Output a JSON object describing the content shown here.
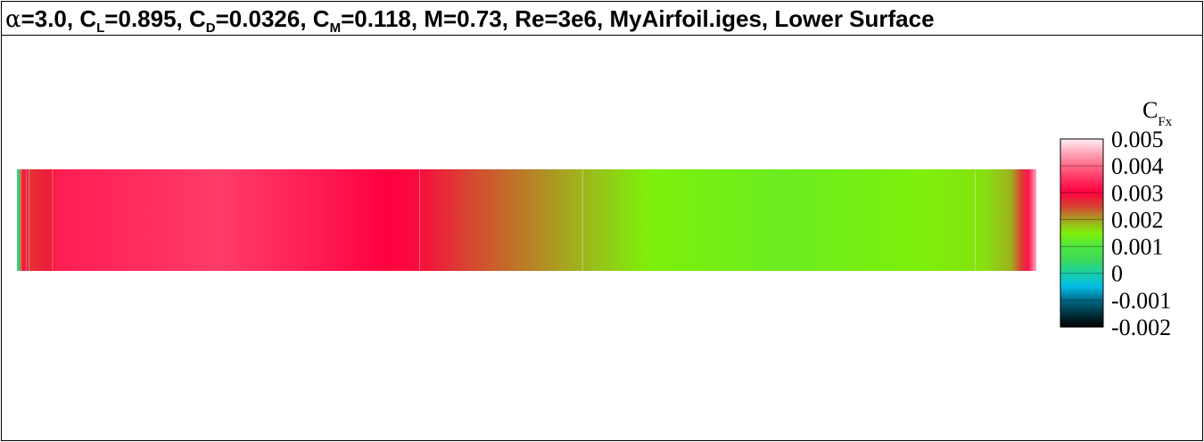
{
  "title": {
    "alpha_symbol": "α",
    "alpha_value": "=3.0, ",
    "cl_main": "C",
    "cl_sub": "L",
    "cl_value": "=0.895, ",
    "cd_main": "C",
    "cd_sub": "D",
    "cd_value": "=0.0326, ",
    "cm_main": "C",
    "cm_sub": "M",
    "cm_value": "=0.118, M=0.73, Re=3e6, MyAirfoil.iges, Lower Surface"
  },
  "chart_data": {
    "type": "heatmap",
    "variable_main": "C",
    "variable_sub": "Fx",
    "colorbar": {
      "min": -0.002,
      "max": 0.005,
      "ticks": [
        {
          "value": 0.005,
          "label": "0.005"
        },
        {
          "value": 0.004,
          "label": "0.004"
        },
        {
          "value": 0.003,
          "label": "0.003"
        },
        {
          "value": 0.002,
          "label": "0.002"
        },
        {
          "value": 0.001,
          "label": "0.001"
        },
        {
          "value": 0,
          "label": "0"
        },
        {
          "value": -0.001,
          "label": "-0.001"
        },
        {
          "value": -0.002,
          "label": "-0.002"
        }
      ],
      "color_stops": [
        {
          "value": -0.002,
          "color": "#000000"
        },
        {
          "value": -0.0015,
          "color": "#00323f"
        },
        {
          "value": -0.001,
          "color": "#006a86"
        },
        {
          "value": -0.0005,
          "color": "#00bde6"
        },
        {
          "value": 0.0,
          "color": "#1ad0a9"
        },
        {
          "value": 0.0005,
          "color": "#3cd858"
        },
        {
          "value": 0.001,
          "color": "#4ee641"
        },
        {
          "value": 0.0015,
          "color": "#7ef00a"
        },
        {
          "value": 0.002,
          "color": "#a7a123"
        },
        {
          "value": 0.0025,
          "color": "#d94232"
        },
        {
          "value": 0.003,
          "color": "#ff0040"
        },
        {
          "value": 0.0035,
          "color": "#ff3060"
        },
        {
          "value": 0.004,
          "color": "#ff6a88"
        },
        {
          "value": 0.0045,
          "color": "#ffa8bb"
        },
        {
          "value": 0.005,
          "color": "#fff0f4"
        }
      ]
    },
    "surface_profile": [
      {
        "s": 0.0,
        "value": -0.0002
      },
      {
        "s": 0.002,
        "value": 0.0008
      },
      {
        "s": 0.004,
        "value": 0.0027
      },
      {
        "s": 0.009,
        "value": 0.0028
      },
      {
        "s": 0.012,
        "value": 0.0026
      },
      {
        "s": 0.02,
        "value": 0.0027
      },
      {
        "s": 0.035,
        "value": 0.0028
      },
      {
        "s": 0.04,
        "value": 0.0033
      },
      {
        "s": 0.2,
        "value": 0.0036
      },
      {
        "s": 0.32,
        "value": 0.0032
      },
      {
        "s": 0.36,
        "value": 0.003
      },
      {
        "s": 0.395,
        "value": 0.0029
      },
      {
        "s": 0.44,
        "value": 0.0025
      },
      {
        "s": 0.55,
        "value": 0.0019
      },
      {
        "s": 0.62,
        "value": 0.0015
      },
      {
        "s": 0.75,
        "value": 0.0013
      },
      {
        "s": 0.89,
        "value": 0.0015
      },
      {
        "s": 0.95,
        "value": 0.0016
      },
      {
        "s": 0.975,
        "value": 0.0019
      },
      {
        "s": 0.985,
        "value": 0.0025
      },
      {
        "s": 0.992,
        "value": 0.0032
      },
      {
        "s": 1.0,
        "value": 0.0045
      }
    ],
    "panel_edges": [
      0.004,
      0.009,
      0.012,
      0.035,
      0.395,
      0.555,
      0.94
    ]
  }
}
